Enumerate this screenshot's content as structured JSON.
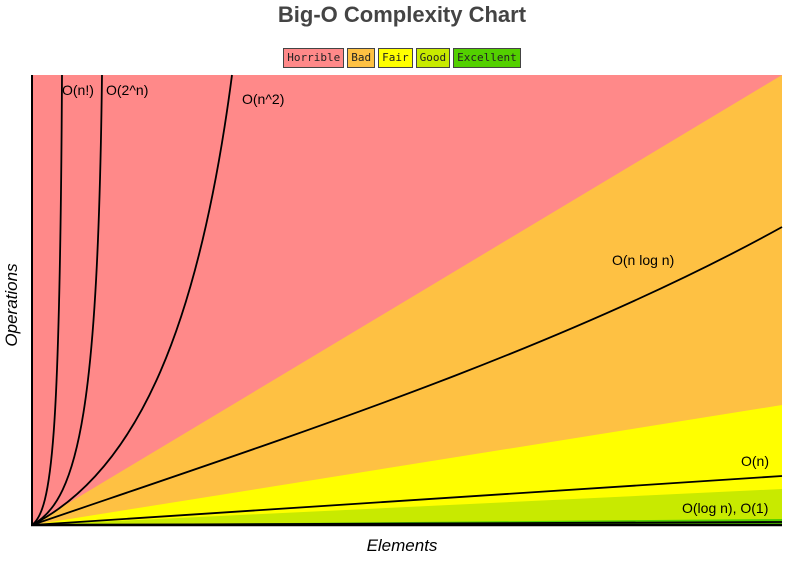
{
  "chart_data": {
    "type": "area",
    "title": "Big-O Complexity Chart",
    "xlabel": "Elements",
    "ylabel": "Operations",
    "legend": {
      "placement": "top-center",
      "items": [
        {
          "label": "Horrible",
          "color": "#ff8989"
        },
        {
          "label": "Bad",
          "color": "#fec143"
        },
        {
          "label": "Fair",
          "color": "#ffff00"
        },
        {
          "label": "Good",
          "color": "#c8ea00"
        },
        {
          "label": "Excellent",
          "color": "#53d000"
        }
      ]
    },
    "series": [
      {
        "name": "O(n!)",
        "label": "O(n!)"
      },
      {
        "name": "O(2^n)",
        "label": "O(2^n)"
      },
      {
        "name": "O(n^2)",
        "label": "O(n^2)"
      },
      {
        "name": "O(n log n)",
        "label": "O(n log n)"
      },
      {
        "name": "O(n)",
        "label": "O(n)"
      },
      {
        "name": "O(log n), O(1)",
        "label": "O(log n), O(1)"
      }
    ],
    "grid": false
  }
}
